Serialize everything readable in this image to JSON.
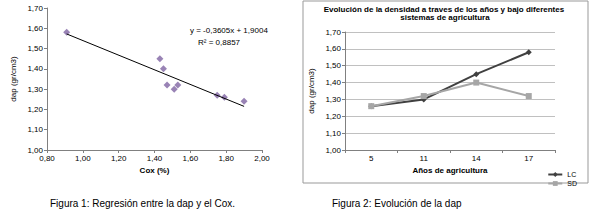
{
  "chart_data": [
    {
      "type": "scatter",
      "caption": "Figura 1: Regresión entre la dap y el Cox.",
      "xlabel": "Cox (%)",
      "ylabel": "dap (gr/cm3)",
      "annotations": [
        "y = -0,3605x + 1,9004",
        "R² = 0,8857"
      ],
      "series": [
        {
          "type": "scatter",
          "color": "#8064a2",
          "marker": "diamond",
          "x": [
            0.91,
            1.43,
            1.45,
            1.47,
            1.51,
            1.53,
            1.75,
            1.79,
            1.9
          ],
          "values": [
            1.58,
            1.45,
            1.4,
            1.32,
            1.3,
            1.32,
            1.27,
            1.26,
            1.24
          ]
        },
        {
          "type": "line",
          "color": "#000000",
          "x": [
            0.91,
            1.9
          ],
          "values": [
            1.572,
            1.215
          ]
        }
      ],
      "xlim": [
        0.8,
        2.0
      ],
      "xticks": [
        {
          "value": 0.8,
          "label": "0,80"
        },
        {
          "value": 1.0,
          "label": "1,00"
        },
        {
          "value": 1.2,
          "label": "1,20"
        },
        {
          "value": 1.4,
          "label": "1,40"
        },
        {
          "value": 1.6,
          "label": "1,60"
        },
        {
          "value": 1.8,
          "label": "1,80"
        },
        {
          "value": 2.0,
          "label": "2,00"
        }
      ],
      "ylim": [
        1.0,
        1.7
      ],
      "yticks": [
        {
          "value": 1.0,
          "label": "1,00"
        },
        {
          "value": 1.1,
          "label": "1,10"
        },
        {
          "value": 1.2,
          "label": "1,20"
        },
        {
          "value": 1.3,
          "label": "1,30"
        },
        {
          "value": 1.4,
          "label": "1,40"
        },
        {
          "value": 1.5,
          "label": "1,50"
        },
        {
          "value": 1.6,
          "label": "1,60"
        },
        {
          "value": 1.7,
          "label": "1,70"
        }
      ],
      "grid": false
    },
    {
      "type": "line",
      "title": "Evolución de la densidad a traves de los años y bajo diferentes sistemas de agricultura",
      "caption": "Figura 2: Evolución de la dap",
      "xlabel": "Años de agricultura",
      "ylabel": "dap (gr/cm3)",
      "categories": [
        "5",
        "11",
        "14",
        "17"
      ],
      "series": [
        {
          "name": "LC",
          "color": "#404040",
          "marker": "diamond",
          "values": [
            1.26,
            1.3,
            1.45,
            1.58
          ]
        },
        {
          "name": "SD",
          "color": "#a6a6a6",
          "marker": "square",
          "values": [
            1.26,
            1.32,
            1.4,
            1.32
          ]
        }
      ],
      "ylim": [
        1.0,
        1.7
      ],
      "yticks": [
        {
          "value": 1.0,
          "label": "1,00"
        },
        {
          "value": 1.1,
          "label": "1,10"
        },
        {
          "value": 1.2,
          "label": "1,20"
        },
        {
          "value": 1.3,
          "label": "1,30"
        },
        {
          "value": 1.4,
          "label": "1,40"
        },
        {
          "value": 1.5,
          "label": "1,50"
        },
        {
          "value": 1.6,
          "label": "1,60"
        },
        {
          "value": 1.7,
          "label": "1,70"
        }
      ],
      "grid": true,
      "legend": "bottom-right"
    }
  ]
}
